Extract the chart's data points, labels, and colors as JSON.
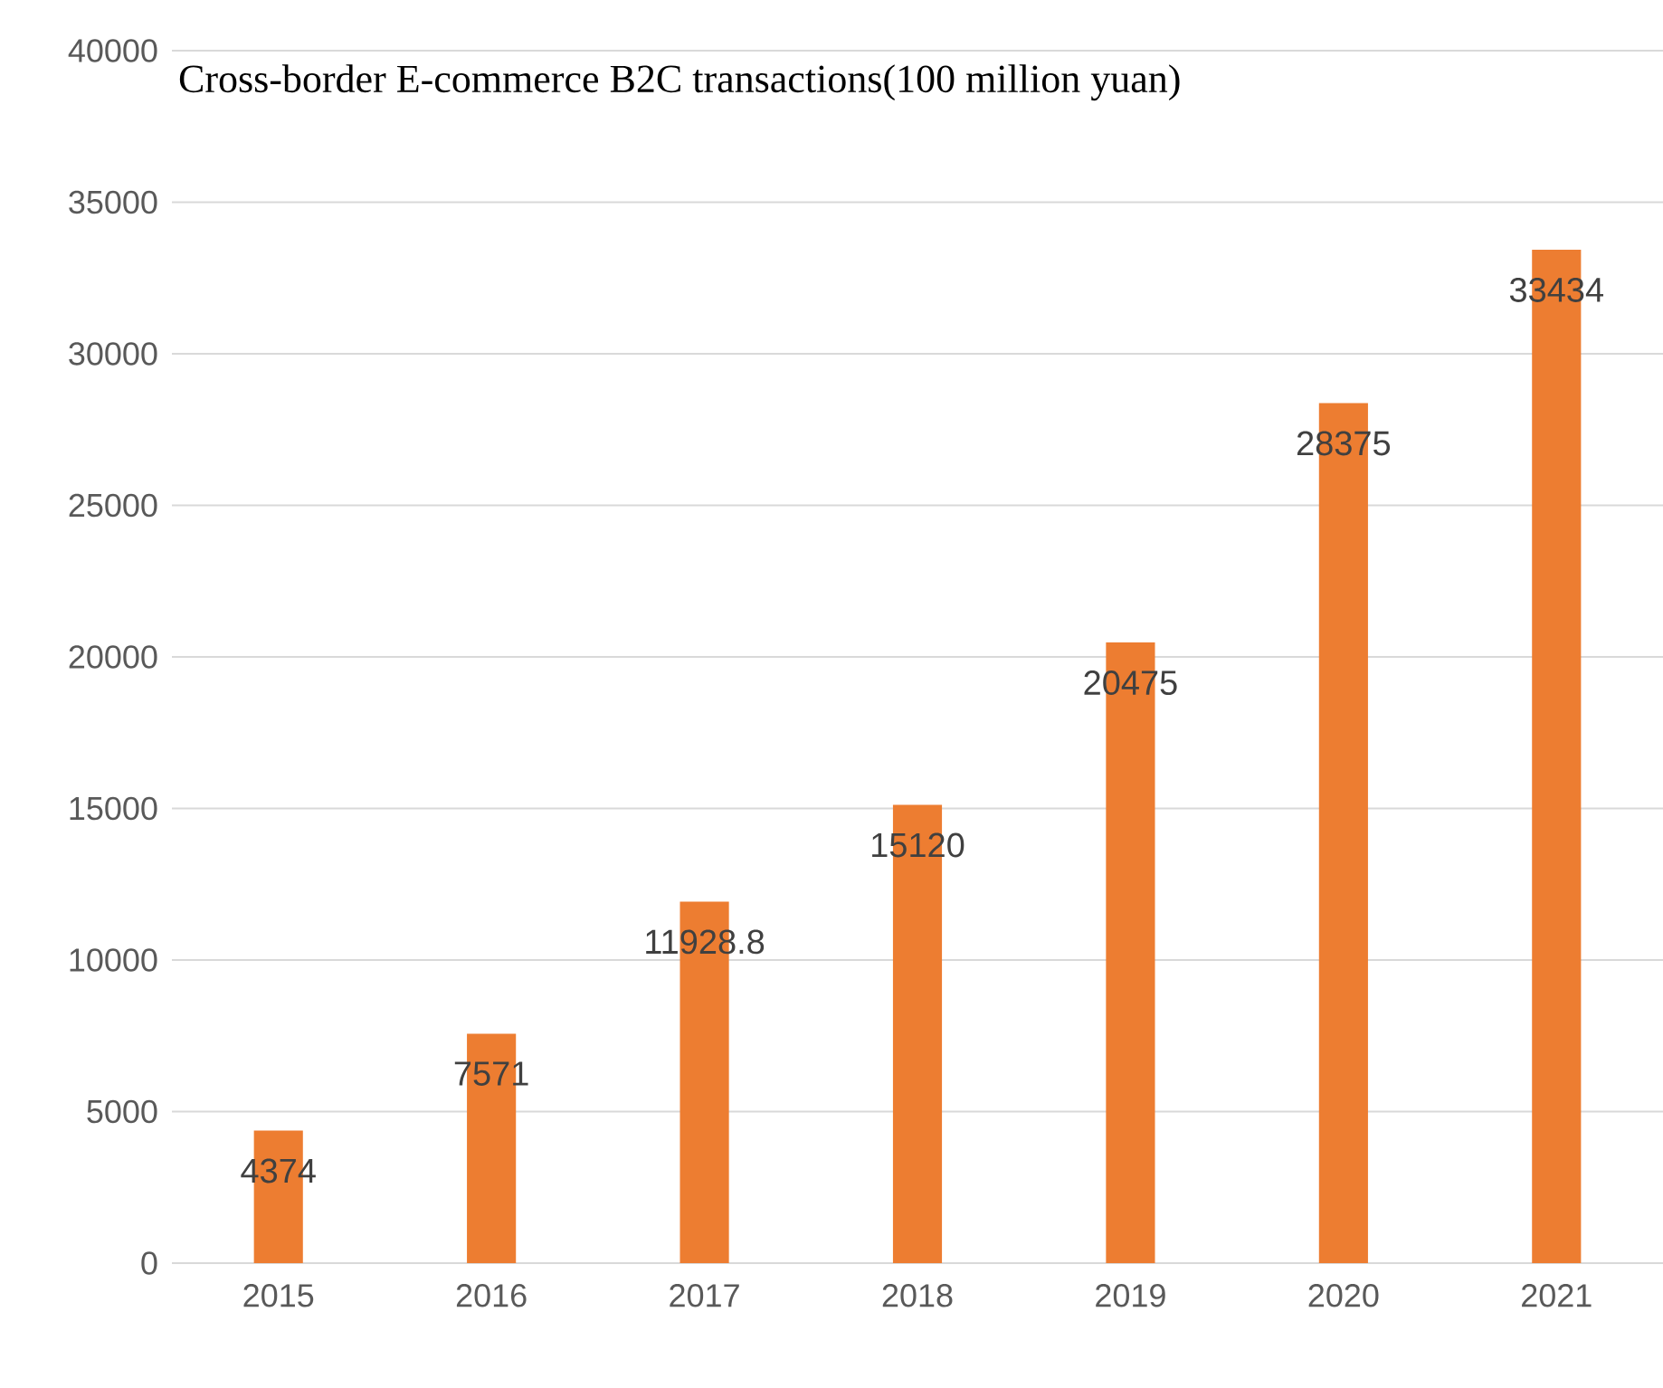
{
  "chart_data": {
    "type": "bar",
    "title": "Cross-border E-commerce B2C transactions(100 million yuan)",
    "categories": [
      "2015",
      "2016",
      "2017",
      "2018",
      "2019",
      "2020",
      "2021"
    ],
    "values": [
      4374,
      7571,
      11928.8,
      15120,
      20475,
      28375,
      33434
    ],
    "color": "#ed7d31",
    "ylim": [
      0,
      40000
    ],
    "yticks": [
      0,
      5000,
      10000,
      15000,
      20000,
      25000,
      30000,
      35000,
      40000
    ],
    "grid": "y",
    "data_labels": true
  }
}
